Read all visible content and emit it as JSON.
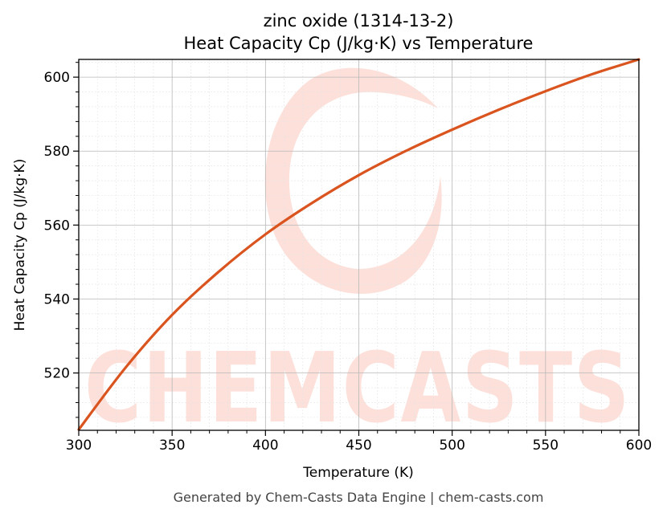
{
  "chart_data": {
    "type": "line",
    "title": "zinc oxide (1314-13-2)",
    "subtitle": "Heat Capacity Cp (J/kg·K) vs Temperature",
    "xlabel": "Temperature (K)",
    "ylabel": "Heat Capacity Cp (J/kg·K)",
    "xlim": [
      300,
      600
    ],
    "ylim": [
      504.5,
      604.8
    ],
    "x_ticks": [
      300,
      350,
      400,
      450,
      500,
      550,
      600
    ],
    "y_ticks": [
      520,
      540,
      560,
      580,
      600
    ],
    "grid": true,
    "series": [
      {
        "color": "#d9541e",
        "x": [
          300,
          325,
          350,
          375,
          400,
          425,
          450,
          475,
          500,
          525,
          550,
          575,
          600
        ],
        "y": [
          504.7,
          521.4,
          535.7,
          547.4,
          557.5,
          566.0,
          573.5,
          580.0,
          585.8,
          591.2,
          596.2,
          600.8,
          604.8
        ]
      }
    ]
  },
  "watermark": "CHEMCASTS",
  "footer": "Generated by Chem-Casts Data Engine | chem-casts.com"
}
